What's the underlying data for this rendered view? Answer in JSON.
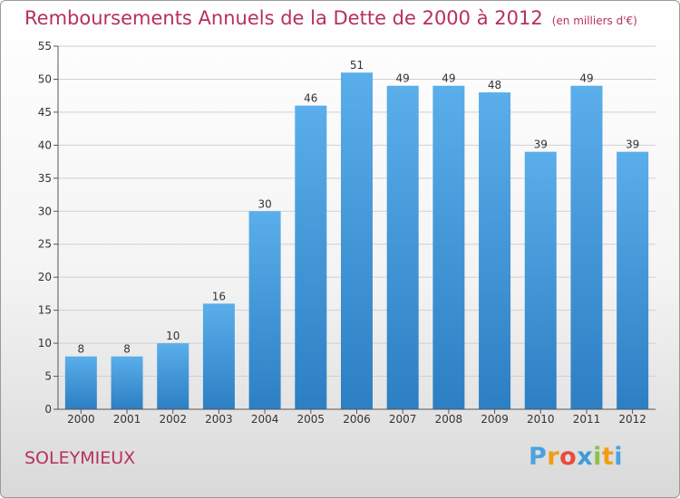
{
  "header": {
    "title": "Remboursements Annuels de la Dette de 2000 à 2012",
    "unit": "(en milliers d'€)"
  },
  "entity_name": "SOLEYMIEUX",
  "brand": {
    "letters": [
      "P",
      "r",
      "o",
      "x",
      "i",
      "t",
      "i"
    ],
    "colors": [
      "#4aa3df",
      "#f39c12",
      "#e74c3c",
      "#3f9bd6",
      "#8bc34a",
      "#f39c12",
      "#4aa3df"
    ]
  },
  "colors": {
    "bar_top": "#5aaeea",
    "bar_bottom": "#2c7fc3",
    "grid": "#d0d0d0",
    "title": "#b8305c"
  },
  "chart_data": {
    "type": "bar",
    "categories": [
      "2000",
      "2001",
      "2002",
      "2003",
      "2004",
      "2005",
      "2006",
      "2007",
      "2008",
      "2009",
      "2010",
      "2011",
      "2012"
    ],
    "values": [
      8,
      8,
      10,
      16,
      30,
      46,
      51,
      49,
      49,
      48,
      39,
      49,
      39
    ],
    "ylim": [
      0,
      55
    ],
    "yticks": [
      0,
      5,
      10,
      15,
      20,
      25,
      30,
      35,
      40,
      45,
      50,
      55
    ],
    "grid": true
  }
}
